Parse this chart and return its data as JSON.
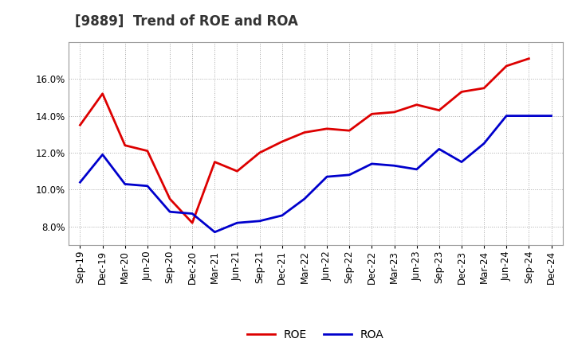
{
  "title": "[9889]  Trend of ROE and ROA",
  "x_labels": [
    "Sep-19",
    "Dec-19",
    "Mar-20",
    "Jun-20",
    "Sep-20",
    "Dec-20",
    "Mar-21",
    "Jun-21",
    "Sep-21",
    "Dec-21",
    "Mar-22",
    "Jun-22",
    "Sep-22",
    "Dec-22",
    "Mar-23",
    "Jun-23",
    "Sep-23",
    "Dec-23",
    "Mar-24",
    "Jun-24",
    "Sep-24",
    "Dec-24"
  ],
  "roe_values": [
    13.5,
    15.2,
    12.4,
    12.1,
    9.5,
    8.2,
    11.5,
    11.0,
    12.0,
    12.6,
    13.1,
    13.3,
    13.2,
    14.1,
    14.2,
    14.6,
    14.3,
    15.3,
    15.5,
    16.7,
    17.1,
    null
  ],
  "roa_values": [
    10.4,
    11.9,
    10.3,
    10.2,
    8.8,
    8.7,
    7.7,
    8.2,
    8.3,
    8.6,
    9.5,
    10.7,
    10.8,
    11.4,
    11.3,
    11.1,
    12.2,
    11.5,
    12.5,
    14.0,
    14.0,
    14.0
  ],
  "roe_color": "#dd0000",
  "roa_color": "#0000cc",
  "grid_color": "#aaaaaa",
  "background_color": "#ffffff",
  "plot_bg_color": "#ffffff",
  "ylim": [
    7.0,
    18.0
  ],
  "yticks": [
    8.0,
    10.0,
    12.0,
    14.0,
    16.0
  ],
  "legend_roe": "ROE",
  "legend_roa": "ROA",
  "line_width": 2.0,
  "title_fontsize": 12,
  "tick_fontsize": 8.5
}
